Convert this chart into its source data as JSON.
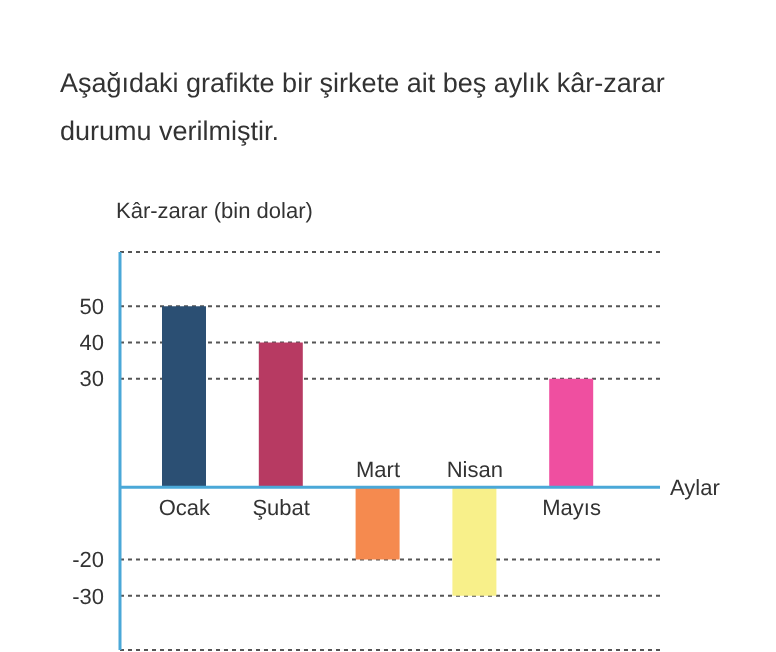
{
  "chart_data": {
    "type": "bar",
    "title": "Aşağıdaki grafikte bir şirkete ait beş aylık kâr-zarar durumu verilmiştir.",
    "ylabel": "Kâr-zarar (bin dolar)",
    "xlabel": "Aylar",
    "categories": [
      "Ocak",
      "Şubat",
      "Mart",
      "Nisan",
      "Mayıs"
    ],
    "values": [
      50,
      40,
      -20,
      -30,
      30
    ],
    "colors": [
      "#2b4f73",
      "#b73a62",
      "#f58a4f",
      "#f8f08a",
      "#ef4fa0"
    ],
    "ylim": [
      -45,
      65
    ],
    "yticks": [
      -30,
      -20,
      30,
      40,
      50
    ],
    "grid": "y"
  }
}
